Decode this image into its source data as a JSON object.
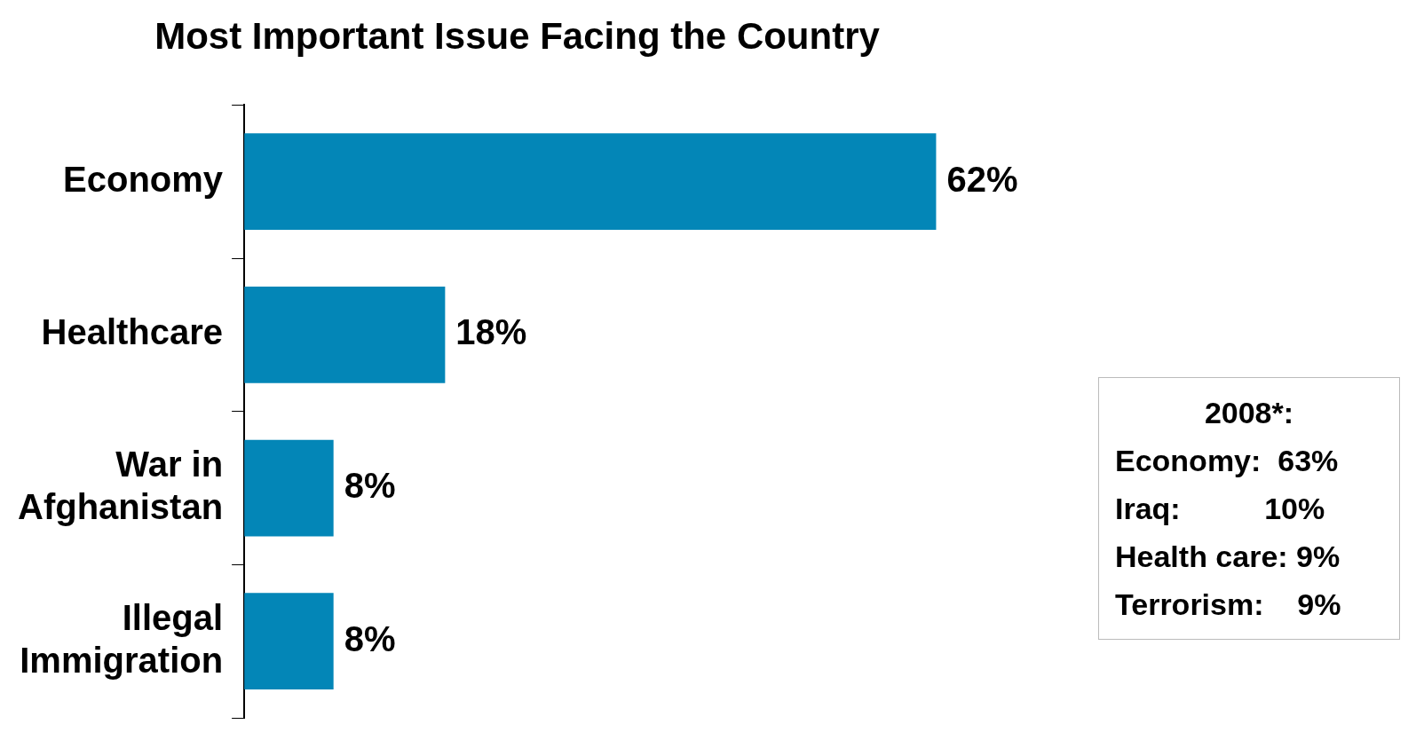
{
  "chart_data": {
    "type": "bar",
    "orientation": "horizontal",
    "title": "Most Important Issue Facing the Country",
    "categories": [
      "Economy",
      "Healthcare",
      "War in Afghanistan",
      "Illegal Immigration"
    ],
    "values": [
      62,
      18,
      8,
      8
    ],
    "color": "#0386b7",
    "data_labels": true,
    "value_labels": [
      "62%",
      "18%",
      "8%",
      "8%"
    ],
    "annotations": [
      "2008*:",
      "Economy:  63%",
      "Iraq:          10%",
      "Health care: 9%",
      "Terrorism:    9%"
    ],
    "legend": false,
    "grid": false
  }
}
